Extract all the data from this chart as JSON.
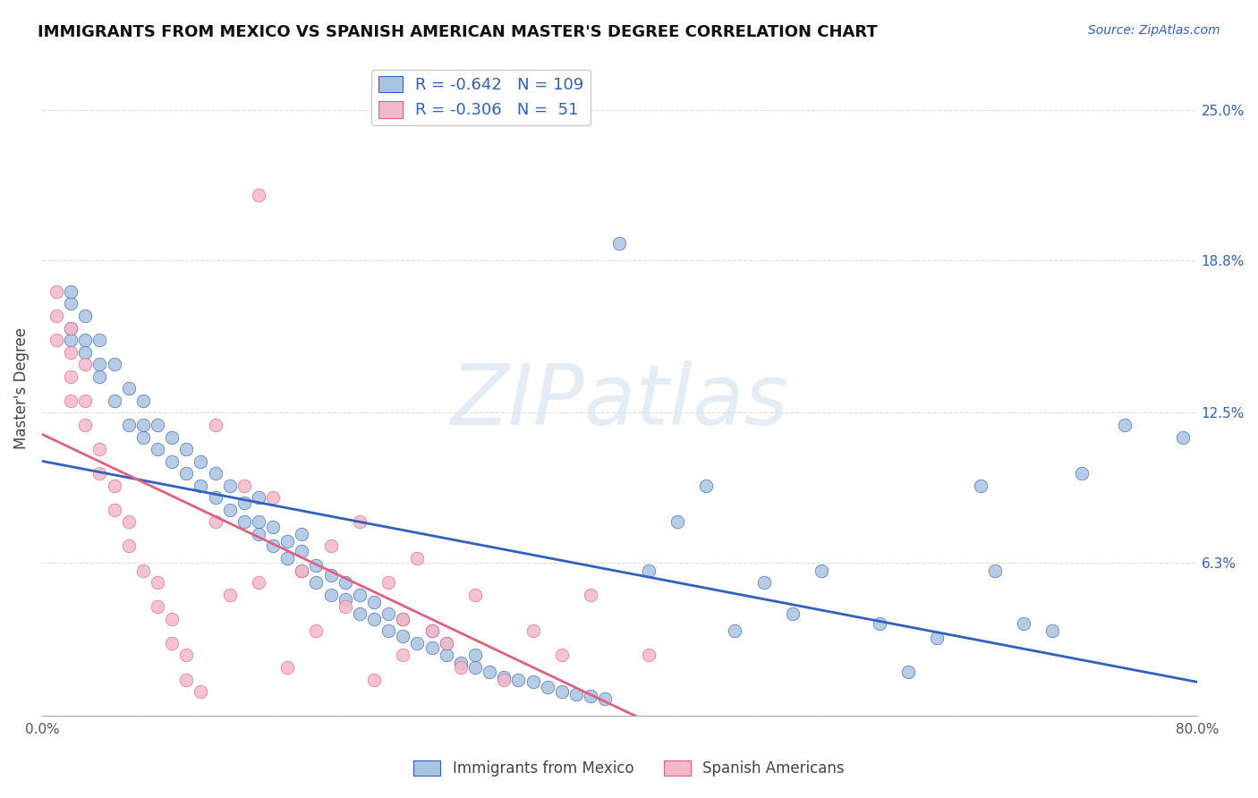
{
  "title": "IMMIGRANTS FROM MEXICO VS SPANISH AMERICAN MASTER'S DEGREE CORRELATION CHART",
  "source": "Source: ZipAtlas.com",
  "ylabel": "Master's Degree",
  "xlim": [
    0.0,
    0.8
  ],
  "ylim": [
    0.0,
    0.27
  ],
  "blue_R": -0.642,
  "blue_N": 109,
  "pink_R": -0.306,
  "pink_N": 51,
  "blue_color": "#a8c4e0",
  "pink_color": "#f4b8c8",
  "blue_line_color": "#3060c0",
  "pink_line_color": "#e06080",
  "background_color": "#ffffff",
  "grid_color": "#dddddd",
  "blue_x": [
    0.02,
    0.02,
    0.02,
    0.02,
    0.03,
    0.03,
    0.03,
    0.04,
    0.04,
    0.04,
    0.05,
    0.05,
    0.06,
    0.06,
    0.07,
    0.07,
    0.07,
    0.08,
    0.08,
    0.09,
    0.09,
    0.1,
    0.1,
    0.11,
    0.11,
    0.12,
    0.12,
    0.13,
    0.13,
    0.14,
    0.14,
    0.15,
    0.15,
    0.15,
    0.16,
    0.16,
    0.17,
    0.17,
    0.18,
    0.18,
    0.18,
    0.19,
    0.19,
    0.2,
    0.2,
    0.21,
    0.21,
    0.22,
    0.22,
    0.23,
    0.23,
    0.24,
    0.24,
    0.25,
    0.25,
    0.26,
    0.27,
    0.27,
    0.28,
    0.28,
    0.29,
    0.3,
    0.3,
    0.31,
    0.32,
    0.33,
    0.34,
    0.35,
    0.36,
    0.37,
    0.38,
    0.39,
    0.4,
    0.42,
    0.44,
    0.46,
    0.48,
    0.5,
    0.52,
    0.54,
    0.58,
    0.6,
    0.62,
    0.65,
    0.66,
    0.68,
    0.7,
    0.72,
    0.75,
    0.79
  ],
  "blue_y": [
    0.155,
    0.16,
    0.17,
    0.175,
    0.15,
    0.155,
    0.165,
    0.14,
    0.145,
    0.155,
    0.13,
    0.145,
    0.12,
    0.135,
    0.115,
    0.12,
    0.13,
    0.11,
    0.12,
    0.105,
    0.115,
    0.1,
    0.11,
    0.095,
    0.105,
    0.09,
    0.1,
    0.085,
    0.095,
    0.08,
    0.088,
    0.075,
    0.08,
    0.09,
    0.07,
    0.078,
    0.065,
    0.072,
    0.06,
    0.068,
    0.075,
    0.055,
    0.062,
    0.05,
    0.058,
    0.048,
    0.055,
    0.042,
    0.05,
    0.04,
    0.047,
    0.035,
    0.042,
    0.033,
    0.04,
    0.03,
    0.028,
    0.035,
    0.025,
    0.03,
    0.022,
    0.02,
    0.025,
    0.018,
    0.016,
    0.015,
    0.014,
    0.012,
    0.01,
    0.009,
    0.008,
    0.007,
    0.195,
    0.06,
    0.08,
    0.095,
    0.035,
    0.055,
    0.042,
    0.06,
    0.038,
    0.018,
    0.032,
    0.095,
    0.06,
    0.038,
    0.035,
    0.1,
    0.12,
    0.115
  ],
  "pink_x": [
    0.01,
    0.01,
    0.01,
    0.02,
    0.02,
    0.02,
    0.02,
    0.03,
    0.03,
    0.03,
    0.04,
    0.04,
    0.05,
    0.05,
    0.06,
    0.06,
    0.07,
    0.08,
    0.08,
    0.09,
    0.09,
    0.1,
    0.1,
    0.11,
    0.12,
    0.12,
    0.13,
    0.14,
    0.15,
    0.16,
    0.17,
    0.18,
    0.19,
    0.2,
    0.21,
    0.22,
    0.23,
    0.24,
    0.25,
    0.25,
    0.26,
    0.27,
    0.28,
    0.29,
    0.3,
    0.32,
    0.34,
    0.36,
    0.38,
    0.42,
    0.15
  ],
  "pink_y": [
    0.175,
    0.165,
    0.155,
    0.16,
    0.15,
    0.14,
    0.13,
    0.145,
    0.13,
    0.12,
    0.11,
    0.1,
    0.095,
    0.085,
    0.08,
    0.07,
    0.06,
    0.055,
    0.045,
    0.04,
    0.03,
    0.025,
    0.015,
    0.01,
    0.12,
    0.08,
    0.05,
    0.095,
    0.055,
    0.09,
    0.02,
    0.06,
    0.035,
    0.07,
    0.045,
    0.08,
    0.015,
    0.055,
    0.04,
    0.025,
    0.065,
    0.035,
    0.03,
    0.02,
    0.05,
    0.015,
    0.035,
    0.025,
    0.05,
    0.025,
    0.215
  ]
}
